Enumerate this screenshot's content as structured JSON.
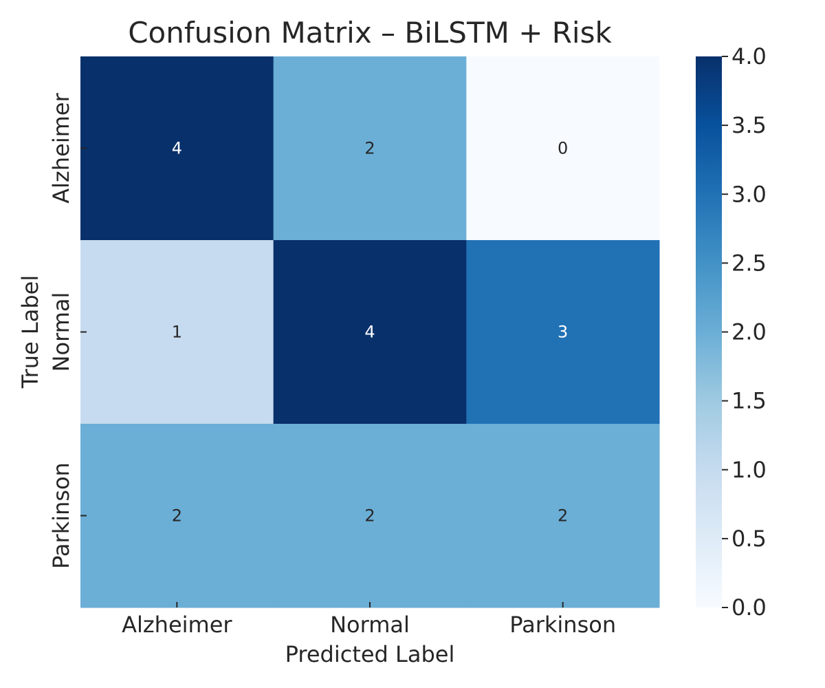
{
  "chart_data": {
    "type": "heatmap",
    "title": "Confusion Matrix – BiLSTM + Risk",
    "xlabel": "Predicted Label",
    "ylabel": "True Label",
    "x_categories": [
      "Alzheimer",
      "Normal",
      "Parkinson"
    ],
    "y_categories": [
      "Alzheimer",
      "Normal",
      "Parkinson"
    ],
    "matrix": [
      [
        4,
        2,
        0
      ],
      [
        1,
        4,
        3
      ],
      [
        2,
        2,
        2
      ]
    ],
    "colorbar": {
      "min": 0,
      "max": 4,
      "ticks": [
        "0.0",
        "0.5",
        "1.0",
        "1.5",
        "2.0",
        "2.5",
        "3.0",
        "3.5",
        "4.0"
      ],
      "colormap": "Blues"
    },
    "colors": {
      "low": "#f7fbff",
      "high": "#08306b",
      "text_dark": "#262626",
      "text_light": "#ffffff"
    }
  }
}
